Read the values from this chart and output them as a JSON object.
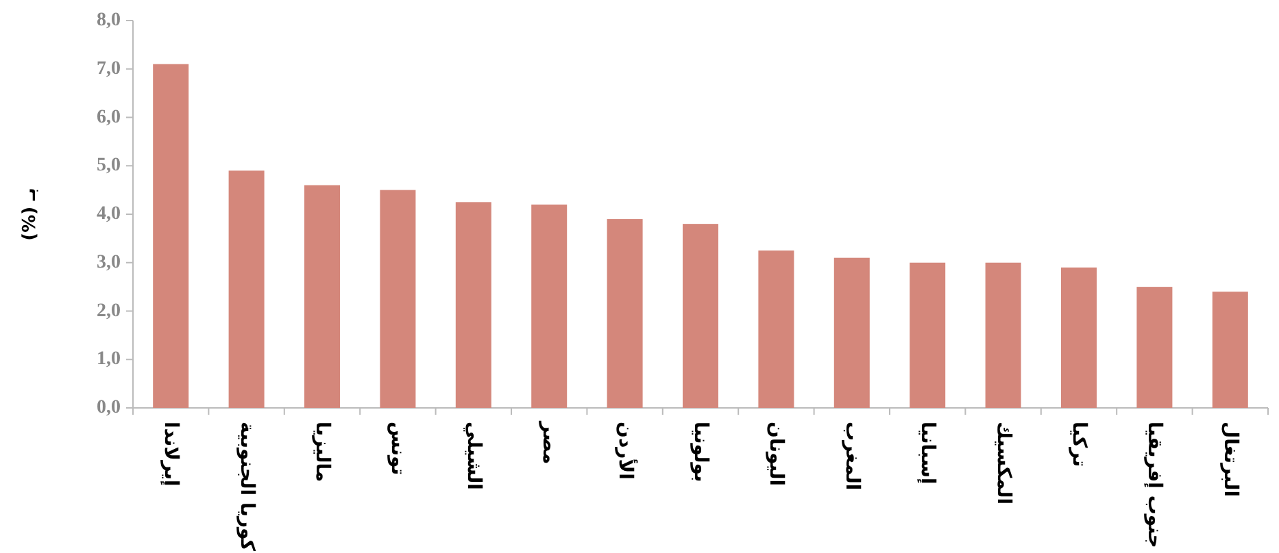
{
  "chart_data": {
    "type": "bar",
    "ylabel": "بـ (%)",
    "categories": [
      "إيرلاندا",
      "كوريا الجنوبية",
      "ماليزيا",
      "تونس",
      "الشيلي",
      "مصر",
      "الأردن",
      "بولونيا",
      "اليونان",
      "المغرب",
      "إسبانيا",
      "المكسيك",
      "تركيا",
      "جنوب إفريقيا",
      "البرتغال"
    ],
    "values": [
      7.1,
      4.9,
      4.6,
      4.5,
      4.25,
      4.2,
      3.9,
      3.8,
      3.25,
      3.1,
      3.0,
      3.0,
      2.9,
      2.5,
      2.4
    ],
    "colors": [
      "#d4877b",
      "#d4877b",
      "#d4877b",
      "#d4877b",
      "#d4877b",
      "#d4877b",
      "#d4877b",
      "#d4877b",
      "#d4877b",
      "#d4877b",
      "#d4877b",
      "#d4877b",
      "#d4877b",
      "#d4877b",
      "#d4877b"
    ],
    "ylim": [
      0,
      8
    ],
    "yticks": [
      {
        "value": 0,
        "label": "0,0"
      },
      {
        "value": 1,
        "label": "1,0"
      },
      {
        "value": 2,
        "label": "2,0"
      },
      {
        "value": 3,
        "label": "3,0"
      },
      {
        "value": 4,
        "label": "4,0"
      },
      {
        "value": 5,
        "label": "5,0"
      },
      {
        "value": 6,
        "label": "6,0"
      },
      {
        "value": 7,
        "label": "7,0"
      },
      {
        "value": 8,
        "label": "8,0"
      }
    ],
    "grid": false
  }
}
